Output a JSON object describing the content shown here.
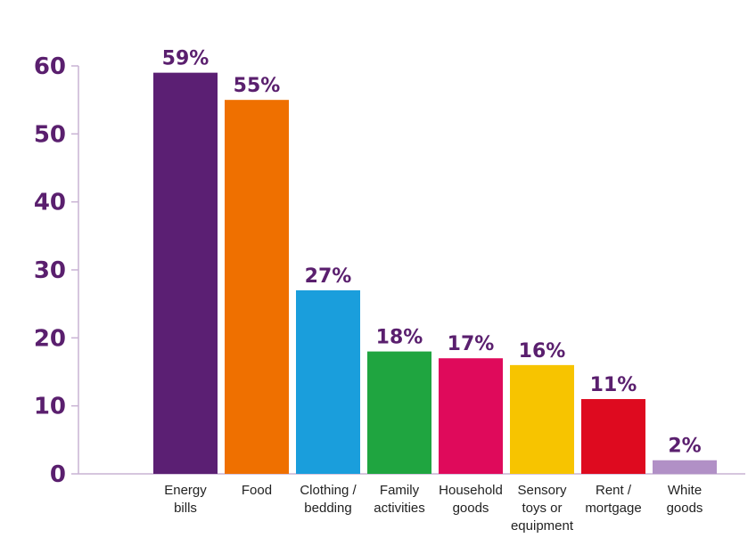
{
  "chart_data": {
    "type": "bar",
    "categories": [
      [
        "Energy",
        "bills"
      ],
      [
        "Food"
      ],
      [
        "Clothing /",
        "bedding"
      ],
      [
        "Family",
        "activities"
      ],
      [
        "Household",
        "goods"
      ],
      [
        "Sensory",
        "toys or",
        "equipment"
      ],
      [
        "Rent /",
        "mortgage"
      ],
      [
        "White",
        "goods"
      ]
    ],
    "values": [
      59,
      55,
      27,
      18,
      17,
      16,
      11,
      2
    ],
    "value_labels": [
      "59%",
      "55%",
      "27%",
      "18%",
      "17%",
      "16%",
      "11%",
      "2%"
    ],
    "colors": [
      "#5b1f73",
      "#ef7000",
      "#1a9edc",
      "#1fa540",
      "#df0a5b",
      "#f7c400",
      "#de0a1f",
      "#b190c6"
    ],
    "yticks": [
      "0",
      "10",
      "20",
      "30",
      "40",
      "50",
      "60"
    ],
    "ylim": [
      0,
      60
    ],
    "axis_color": "#c9b3d4",
    "title": "",
    "xlabel": "",
    "ylabel": "",
    "grid": false
  }
}
